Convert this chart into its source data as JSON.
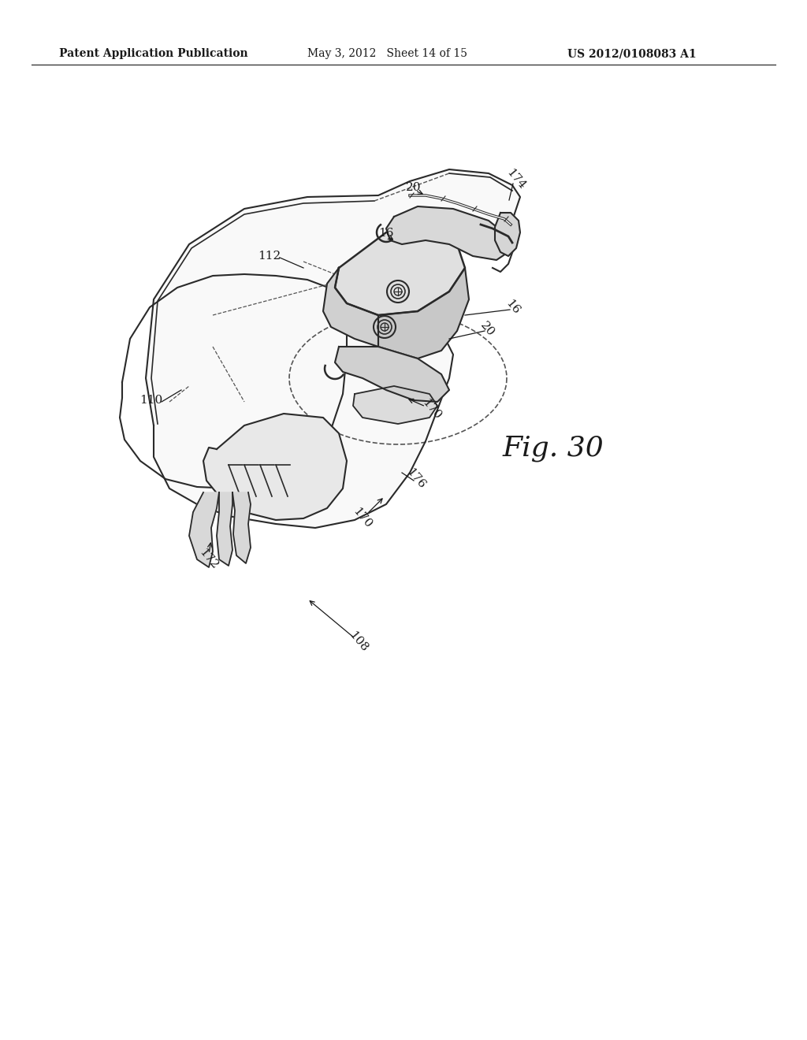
{
  "background_color": "#ffffff",
  "header_left": "Patent Application Publication",
  "header_center": "May 3, 2012   Sheet 14 of 15",
  "header_right": "US 2012/0108083 A1",
  "figure_label": "Fig. 30",
  "text_color": "#1a1a1a",
  "line_color": "#2a2a2a",
  "dashed_line_color": "#555555"
}
